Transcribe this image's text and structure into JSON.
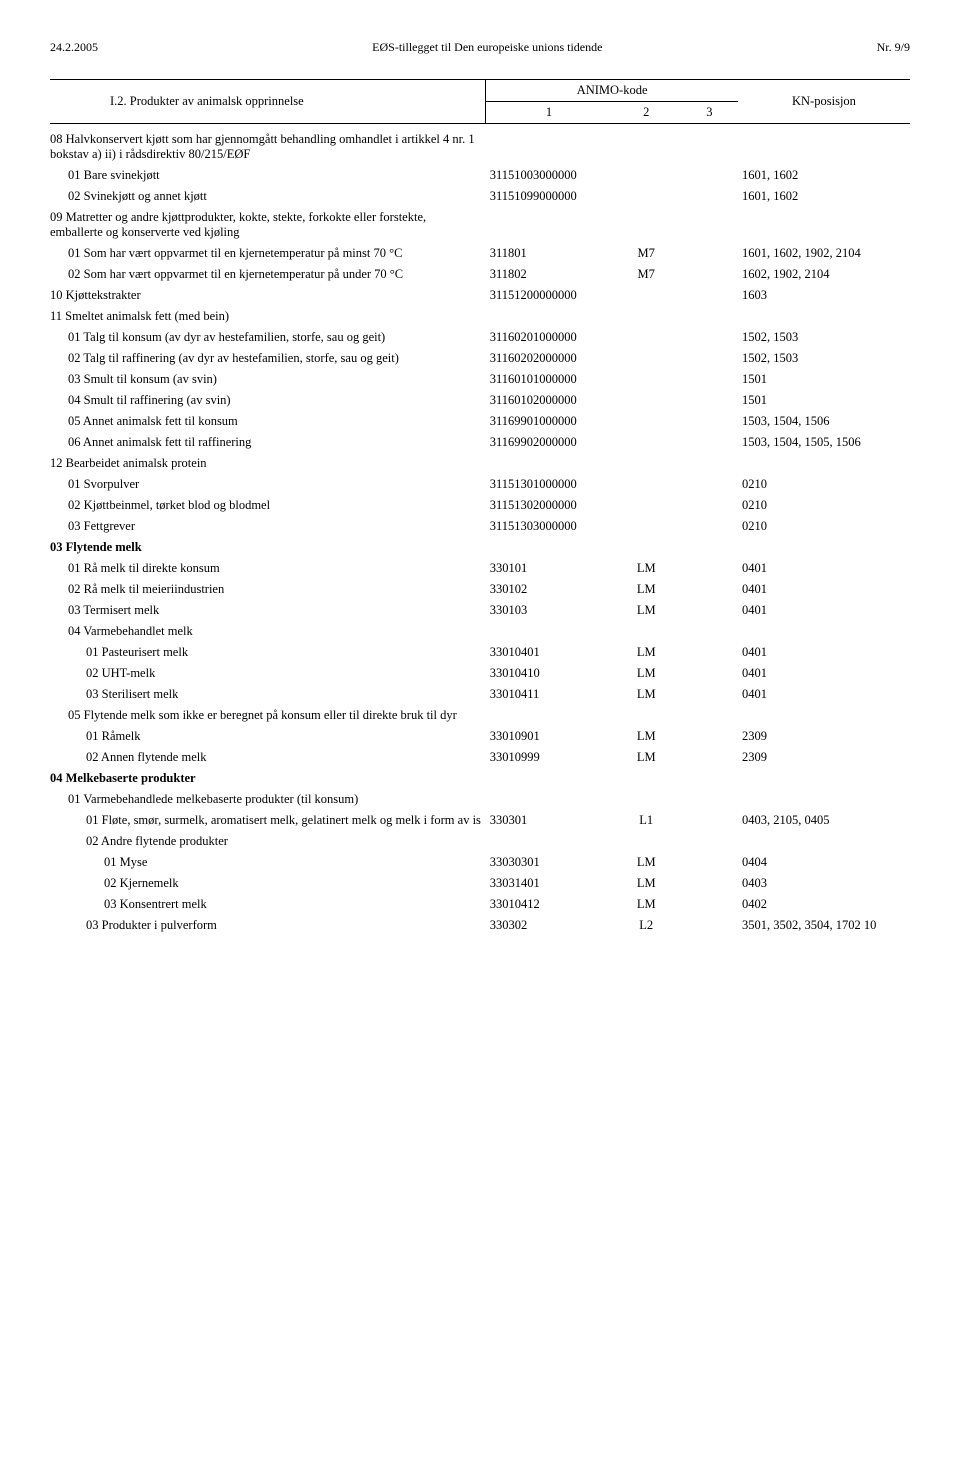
{
  "header": {
    "left": "24.2.2005",
    "center": "EØS-tillegget til Den europeiske unions tidende",
    "right": "Nr. 9/9"
  },
  "tableHeader": {
    "desc": "I.2. Produkter av animalsk opprinnelse",
    "animo": "ANIMO-kode",
    "c1": "1",
    "c2": "2",
    "c3": "3",
    "kn": "KN-posisjon"
  },
  "rows": [
    {
      "indent": 0,
      "desc": "08  Halvkonservert kjøtt som har gjennomgått behandling omhandlet i artikkel 4 nr. 1 bokstav a) ii) i rådsdirektiv 80/215/EØF",
      "c1": "",
      "c2": "",
      "c3": "",
      "kn": "",
      "sectionTop": true
    },
    {
      "indent": 1,
      "desc": "01  Bare svinekjøtt",
      "c1": "31151003000000",
      "c2": "",
      "c3": "",
      "kn": "1601, 1602"
    },
    {
      "indent": 1,
      "desc": "02  Svinekjøtt og annet kjøtt",
      "c1": "31151099000000",
      "c2": "",
      "c3": "",
      "kn": "1601, 1602"
    },
    {
      "indent": 0,
      "desc": "09  Matretter og andre kjøttprodukter, kokte, stekte, forkokte eller forstekte, emballerte og konserverte ved kjøling",
      "c1": "",
      "c2": "",
      "c3": "",
      "kn": ""
    },
    {
      "indent": 1,
      "desc": "01  Som har vært oppvarmet til en kjernetemperatur på minst 70 °C",
      "c1": "311801",
      "c2": "M7",
      "c3": "",
      "kn": "1601, 1602, 1902, 2104"
    },
    {
      "indent": 1,
      "desc": "02  Som har vært oppvarmet til en kjernetemperatur på under 70 °C",
      "c1": "311802",
      "c2": "M7",
      "c3": "",
      "kn": "1602, 1902, 2104"
    },
    {
      "indent": 0,
      "desc": "10  Kjøttekstrakter",
      "c1": "31151200000000",
      "c2": "",
      "c3": "",
      "kn": "1603"
    },
    {
      "indent": 0,
      "desc": "11  Smeltet animalsk fett (med bein)",
      "c1": "",
      "c2": "",
      "c3": "",
      "kn": ""
    },
    {
      "indent": 1,
      "desc": "01  Talg til konsum (av dyr av hestefamilien, storfe, sau og geit)",
      "c1": "31160201000000",
      "c2": "",
      "c3": "",
      "kn": "1502, 1503"
    },
    {
      "indent": 1,
      "desc": "02  Talg til raffinering (av dyr av hestefamilien, storfe, sau og geit)",
      "c1": "31160202000000",
      "c2": "",
      "c3": "",
      "kn": "1502, 1503"
    },
    {
      "indent": 1,
      "desc": "03  Smult til konsum (av svin)",
      "c1": "31160101000000",
      "c2": "",
      "c3": "",
      "kn": "1501"
    },
    {
      "indent": 1,
      "desc": "04  Smult til raffinering (av svin)",
      "c1": "31160102000000",
      "c2": "",
      "c3": "",
      "kn": "1501"
    },
    {
      "indent": 1,
      "desc": "05  Annet animalsk fett til konsum",
      "c1": "31169901000000",
      "c2": "",
      "c3": "",
      "kn": "1503, 1504, 1506"
    },
    {
      "indent": 1,
      "desc": "06  Annet animalsk fett til raffinering",
      "c1": "31169902000000",
      "c2": "",
      "c3": "",
      "kn": "1503, 1504, 1505, 1506"
    },
    {
      "indent": 0,
      "desc": "12  Bearbeidet animalsk protein",
      "c1": "",
      "c2": "",
      "c3": "",
      "kn": ""
    },
    {
      "indent": 1,
      "desc": "01  Svorpulver",
      "c1": "31151301000000",
      "c2": "",
      "c3": "",
      "kn": "0210"
    },
    {
      "indent": 1,
      "desc": "02  Kjøttbeinmel, tørket blod og blodmel",
      "c1": "31151302000000",
      "c2": "",
      "c3": "",
      "kn": "0210"
    },
    {
      "indent": 1,
      "desc": "03  Fettgrever",
      "c1": "31151303000000",
      "c2": "",
      "c3": "",
      "kn": "0210"
    },
    {
      "indent": 0,
      "desc": "03  Flytende melk",
      "c1": "",
      "c2": "",
      "c3": "",
      "kn": "",
      "bold": true
    },
    {
      "indent": 1,
      "desc": "01  Rå melk til direkte konsum",
      "c1": "330101",
      "c2": "LM",
      "c3": "",
      "kn": "0401"
    },
    {
      "indent": 1,
      "desc": "02  Rå melk til meieriindustrien",
      "c1": "330102",
      "c2": "LM",
      "c3": "",
      "kn": "0401"
    },
    {
      "indent": 1,
      "desc": "03  Termisert melk",
      "c1": "330103",
      "c2": "LM",
      "c3": "",
      "kn": "0401"
    },
    {
      "indent": 1,
      "desc": "04  Varmebehandlet melk",
      "c1": "",
      "c2": "",
      "c3": "",
      "kn": ""
    },
    {
      "indent": 2,
      "desc": "01  Pasteurisert melk",
      "c1": "33010401",
      "c2": "LM",
      "c3": "",
      "kn": "0401"
    },
    {
      "indent": 2,
      "desc": "02  UHT-melk",
      "c1": "33010410",
      "c2": "LM",
      "c3": "",
      "kn": "0401"
    },
    {
      "indent": 2,
      "desc": "03  Sterilisert melk",
      "c1": "33010411",
      "c2": "LM",
      "c3": "",
      "kn": "0401"
    },
    {
      "indent": 1,
      "desc": "05  Flytende melk som ikke er beregnet på konsum eller til direkte bruk til dyr",
      "c1": "",
      "c2": "",
      "c3": "",
      "kn": ""
    },
    {
      "indent": 2,
      "desc": "01  Råmelk",
      "c1": "33010901",
      "c2": "LM",
      "c3": "",
      "kn": "2309"
    },
    {
      "indent": 2,
      "desc": "02  Annen flytende melk",
      "c1": "33010999",
      "c2": "LM",
      "c3": "",
      "kn": "2309"
    },
    {
      "indent": 0,
      "desc": "04  Melkebaserte produkter",
      "c1": "",
      "c2": "",
      "c3": "",
      "kn": "",
      "bold": true
    },
    {
      "indent": 1,
      "desc": "01  Varmebehandlede melkebaserte produkter (til konsum)",
      "c1": "",
      "c2": "",
      "c3": "",
      "kn": ""
    },
    {
      "indent": 2,
      "desc": "01  Fløte, smør, surmelk, aromatisert melk, gelatinert melk og melk i form av is",
      "c1": "330301",
      "c2": "L1",
      "c3": "",
      "kn": "0403, 2105, 0405"
    },
    {
      "indent": 2,
      "desc": "02  Andre flytende produkter",
      "c1": "",
      "c2": "",
      "c3": "",
      "kn": ""
    },
    {
      "indent": 3,
      "desc": "01  Myse",
      "c1": "33030301",
      "c2": "LM",
      "c3": "",
      "kn": "0404"
    },
    {
      "indent": 3,
      "desc": "02  Kjernemelk",
      "c1": "33031401",
      "c2": "LM",
      "c3": "",
      "kn": "0403"
    },
    {
      "indent": 3,
      "desc": "03  Konsentrert melk",
      "c1": "33010412",
      "c2": "LM",
      "c3": "",
      "kn": "0402"
    },
    {
      "indent": 2,
      "desc": "03  Produkter i pulverform",
      "c1": "330302",
      "c2": "L2",
      "c3": "",
      "kn": "3501, 3502, 3504, 1702 10"
    }
  ]
}
